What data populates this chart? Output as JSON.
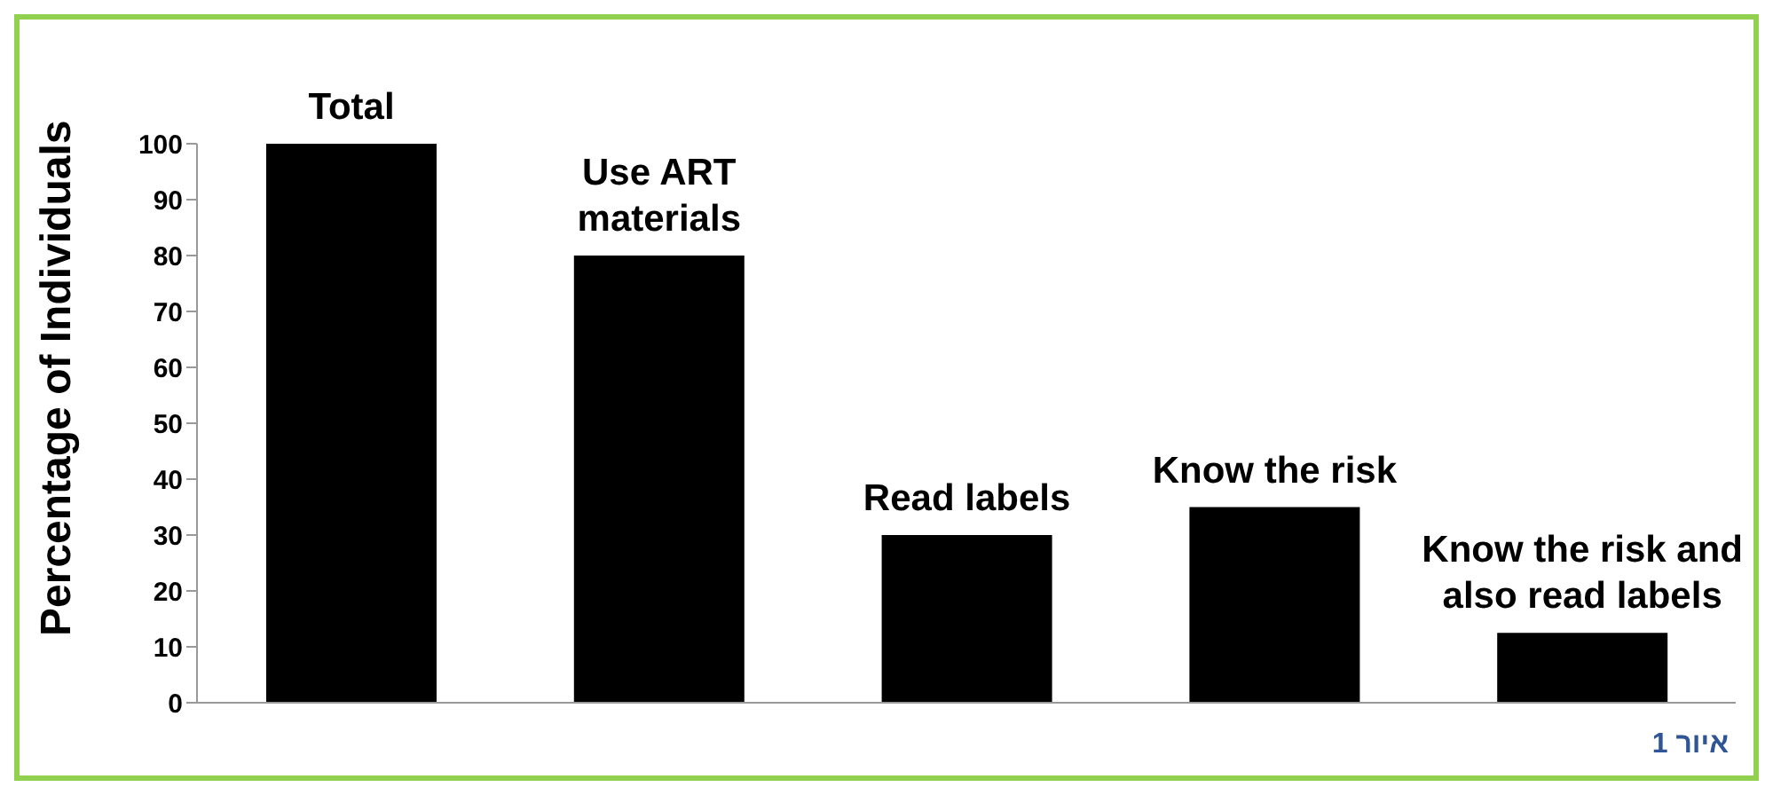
{
  "chart_data": {
    "type": "bar",
    "ylabel": "Percentage of Individuals",
    "categories": [
      "Total",
      "Use ART materials",
      "Read labels",
      "Know the risk",
      "Know the risk and also read labels"
    ],
    "values": [
      100,
      80,
      30,
      35,
      12.5
    ],
    "color": "#000000",
    "ylim": [
      0,
      100
    ],
    "yticks": [
      0,
      10,
      20,
      30,
      40,
      50,
      60,
      70,
      80,
      90,
      100
    ],
    "grid": false,
    "legend": false,
    "annotations": [
      "איור 1"
    ]
  }
}
